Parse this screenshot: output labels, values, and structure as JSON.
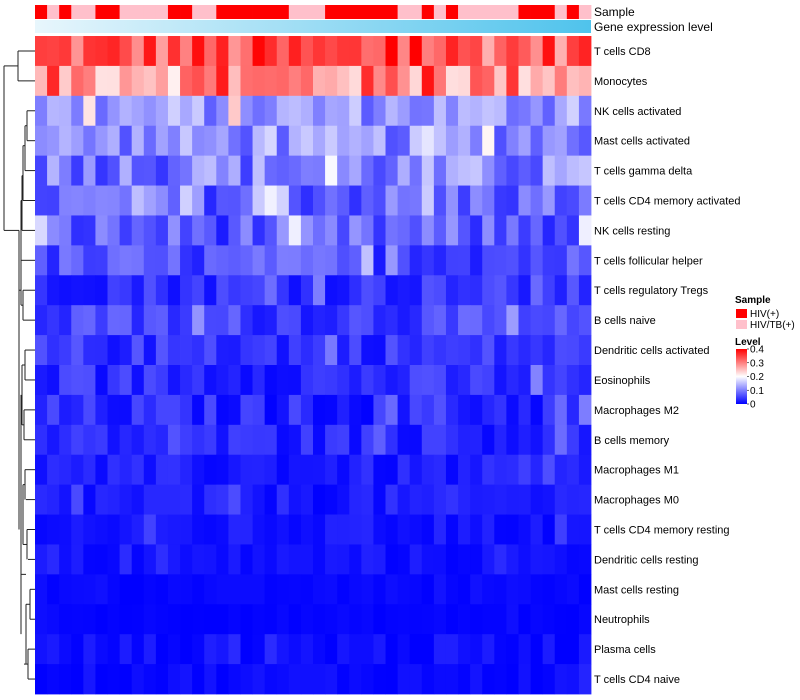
{
  "chart_data": {
    "type": "heatmap",
    "title": "",
    "xlabel": "",
    "ylabel": "",
    "n_samples": 46,
    "rows": [
      "T cells CD8",
      "Monocytes",
      "NK cells activated",
      "Mast cells activated",
      "T cells gamma delta",
      "T cells CD4 memory activated",
      "NK cells resting",
      "T cells follicular helper",
      "T cells regulatory  Tregs",
      "B cells naive",
      "Dendritic cells activated",
      "Eosinophils",
      "Macrophages M2",
      "B cells memory",
      "Macrophages M1",
      "Macrophages M0",
      "T cells CD4 memory resting",
      "Dendritic cells resting",
      "Mast cells resting",
      "Neutrophils",
      "Plasma cells",
      "T cells CD4 naive"
    ],
    "row_means": [
      0.33,
      0.29,
      0.12,
      0.11,
      0.1,
      0.08,
      0.07,
      0.06,
      0.04,
      0.05,
      0.04,
      0.035,
      0.03,
      0.03,
      0.02,
      0.02,
      0.015,
      0.012,
      0.005,
      0.003,
      0.01,
      0.008
    ],
    "row_sd": [
      0.07,
      0.08,
      0.05,
      0.05,
      0.06,
      0.05,
      0.05,
      0.04,
      0.03,
      0.035,
      0.03,
      0.03,
      0.03,
      0.025,
      0.02,
      0.02,
      0.015,
      0.012,
      0.005,
      0.004,
      0.015,
      0.01
    ],
    "samples": [
      "HIV(+)",
      "HIV/TB(+)",
      "HIV(+)",
      "HIV/TB(+)",
      "HIV/TB(+)",
      "HIV(+)",
      "HIV(+)",
      "HIV/TB(+)",
      "HIV/TB(+)",
      "HIV/TB(+)",
      "HIV/TB(+)",
      "HIV(+)",
      "HIV(+)",
      "HIV/TB(+)",
      "HIV/TB(+)",
      "HIV(+)",
      "HIV(+)",
      "HIV(+)",
      "HIV(+)",
      "HIV(+)",
      "HIV(+)",
      "HIV/TB(+)",
      "HIV/TB(+)",
      "HIV/TB(+)",
      "HIV(+)",
      "HIV(+)",
      "HIV(+)",
      "HIV(+)",
      "HIV(+)",
      "HIV(+)",
      "HIV/TB(+)",
      "HIV/TB(+)",
      "HIV(+)",
      "HIV/TB(+)",
      "HIV(+)",
      "HIV/TB(+)",
      "HIV/TB(+)",
      "HIV/TB(+)",
      "HIV/TB(+)",
      "HIV/TB(+)",
      "HIV(+)",
      "HIV(+)",
      "HIV(+)",
      "HIV/TB(+)",
      "HIV(+)",
      "HIV/TB(+)"
    ],
    "annotations": {
      "sample_label": "Sample",
      "gene_label": "Gene expression level"
    },
    "legend": {
      "sample_title": "Sample",
      "sample_entries": [
        {
          "label": "HIV(+)",
          "color": "#ff0000"
        },
        {
          "label": "HIV/TB(+)",
          "color": "#ffc0cb"
        }
      ],
      "level_title": "Level",
      "level_ticks": [
        "0.4",
        "0.3",
        "0.2",
        "0.1",
        "0"
      ],
      "level_values": [
        0.4,
        0.3,
        0.2,
        0.1,
        0
      ],
      "colors": {
        "low": "#0000ff",
        "mid": "#ffffff",
        "high": "#ff0000"
      },
      "range": [
        0,
        0.4
      ]
    },
    "gene_gradient": {
      "from": "#e8f6fc",
      "to": "#4fc3ec"
    }
  }
}
